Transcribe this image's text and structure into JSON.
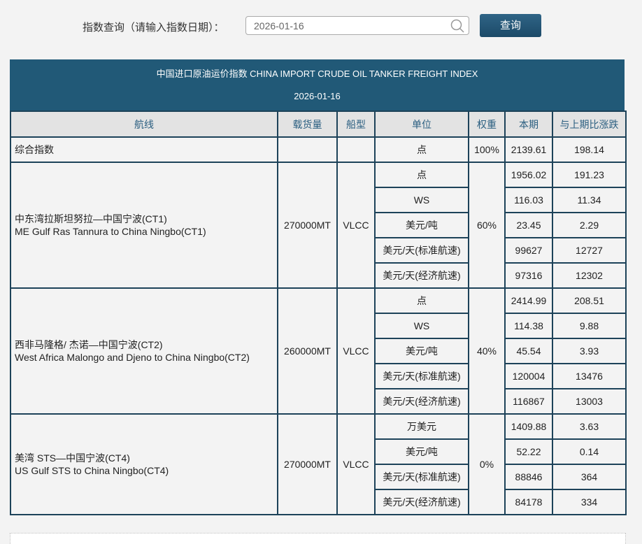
{
  "search": {
    "label": "指数查询（请输入指数日期）：",
    "value": "2026-01-16",
    "button": "查询"
  },
  "banner": {
    "title": "中国进口原油运价指数 CHINA IMPORT CRUDE OIL TANKER FREIGHT INDEX",
    "date": "2026-01-16"
  },
  "table": {
    "headers": [
      "航线",
      "载货量",
      "船型",
      "单位",
      "权重",
      "本期",
      "与上期比涨跌"
    ],
    "composite": {
      "route": "综合指数",
      "unit": "点",
      "weight": "100%",
      "current": "2139.61",
      "change": "198.14"
    },
    "routes": [
      {
        "cn": "中东湾拉斯坦努拉—中国宁波(CT1)",
        "en": "ME Gulf Ras Tannura to China Ningbo(CT1)",
        "load": "270000MT",
        "ship": "VLCC",
        "weight": "60%",
        "rows": [
          {
            "unit": "点",
            "current": "1956.02",
            "change": "191.23"
          },
          {
            "unit": "WS",
            "current": "116.03",
            "change": "11.34"
          },
          {
            "unit": "美元/吨",
            "current": "23.45",
            "change": "2.29"
          },
          {
            "unit": "美元/天(标准航速)",
            "current": "99627",
            "change": "12727"
          },
          {
            "unit": "美元/天(经济航速)",
            "current": "97316",
            "change": "12302"
          }
        ]
      },
      {
        "cn": "西非马隆格/ 杰诺—中国宁波(CT2)",
        "en": "West Africa Malongo and Djeno to China Ningbo(CT2)",
        "load": "260000MT",
        "ship": "VLCC",
        "weight": "40%",
        "rows": [
          {
            "unit": "点",
            "current": "2414.99",
            "change": "208.51"
          },
          {
            "unit": "WS",
            "current": "114.38",
            "change": "9.88"
          },
          {
            "unit": "美元/吨",
            "current": "45.54",
            "change": "3.93"
          },
          {
            "unit": "美元/天(标准航速)",
            "current": "120004",
            "change": "13476"
          },
          {
            "unit": "美元/天(经济航速)",
            "current": "116867",
            "change": "13003"
          }
        ]
      },
      {
        "cn": "美湾 STS—中国宁波(CT4)",
        "en": "US Gulf STS to China Ningbo(CT4)",
        "load": "270000MT",
        "ship": "VLCC",
        "weight": "0%",
        "rows": [
          {
            "unit": "万美元",
            "current": "1409.88",
            "change": "3.63"
          },
          {
            "unit": "美元/吨",
            "current": "52.22",
            "change": "0.14"
          },
          {
            "unit": "美元/天(标准航速)",
            "current": "88846",
            "change": "364"
          },
          {
            "unit": "美元/天(经济航速)",
            "current": "84178",
            "change": "334"
          }
        ]
      }
    ]
  }
}
